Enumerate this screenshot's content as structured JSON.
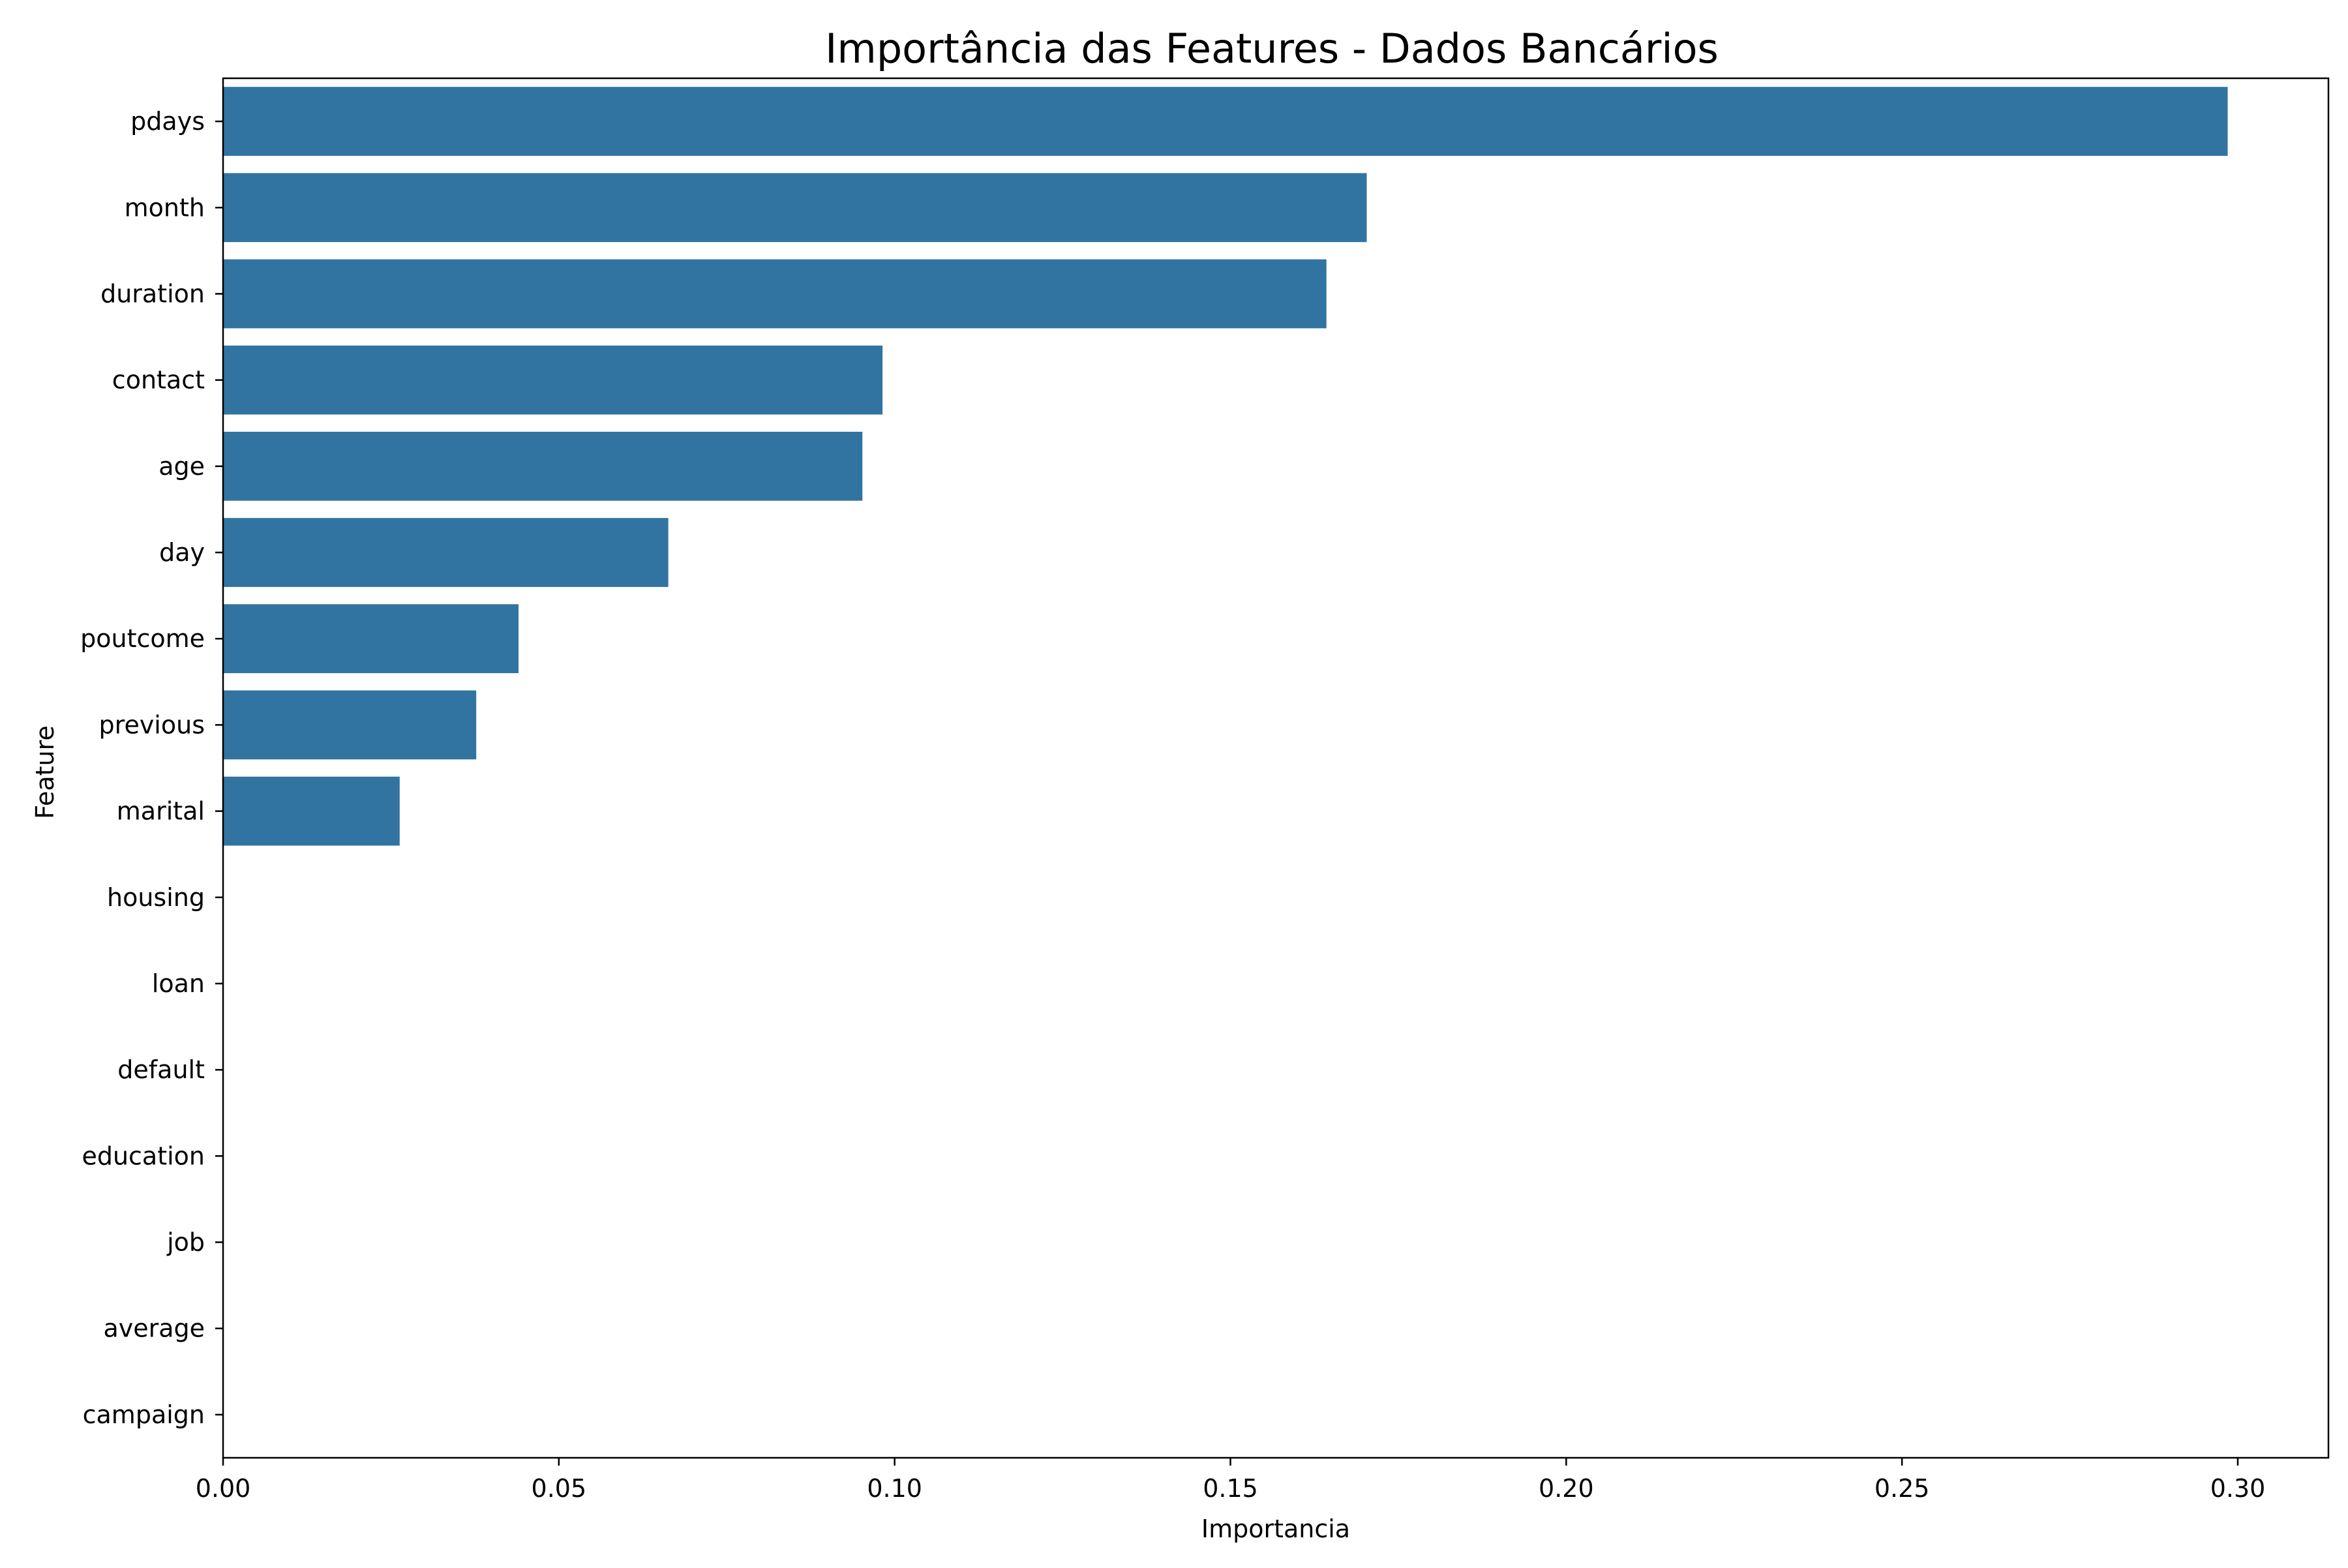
{
  "chart_data": {
    "type": "bar",
    "orientation": "horizontal",
    "title": "Importância das Features - Dados Bancários",
    "xlabel": "Importancia",
    "ylabel": "Feature",
    "categories": [
      "pdays",
      "month",
      "duration",
      "contact",
      "age",
      "day",
      "poutcome",
      "previous",
      "marital",
      "housing",
      "loan",
      "default",
      "education",
      "job",
      "average",
      "campaign"
    ],
    "values": [
      0.2985,
      0.1703,
      0.1643,
      0.0982,
      0.0952,
      0.0663,
      0.044,
      0.0377,
      0.0263,
      0,
      0,
      0,
      0,
      0,
      0,
      0
    ],
    "xlim": [
      0,
      0.3135
    ],
    "xticks": [
      0,
      0.05,
      0.1,
      0.15,
      0.2,
      0.25,
      0.3
    ],
    "xtick_labels": [
      "0.00",
      "0.05",
      "0.10",
      "0.15",
      "0.20",
      "0.25",
      "0.30"
    ],
    "bar_color": "#3274a1",
    "grid": false,
    "legend": false
  }
}
